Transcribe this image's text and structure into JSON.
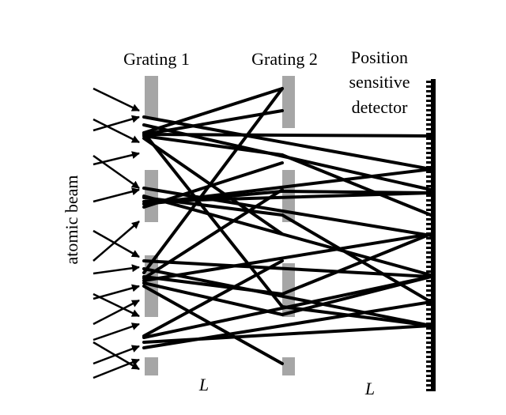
{
  "labels": {
    "grating1": "Grating 1",
    "grating2": "Grating 2",
    "detector_line1": "Position",
    "detector_line2": "sensitive",
    "detector_line3": "detector",
    "beam": "atomic beam",
    "distance1": "L",
    "distance2": "L"
  },
  "colors": {
    "grating": "#a6a6a6",
    "ray": "#000000",
    "detector": "#000000"
  }
}
